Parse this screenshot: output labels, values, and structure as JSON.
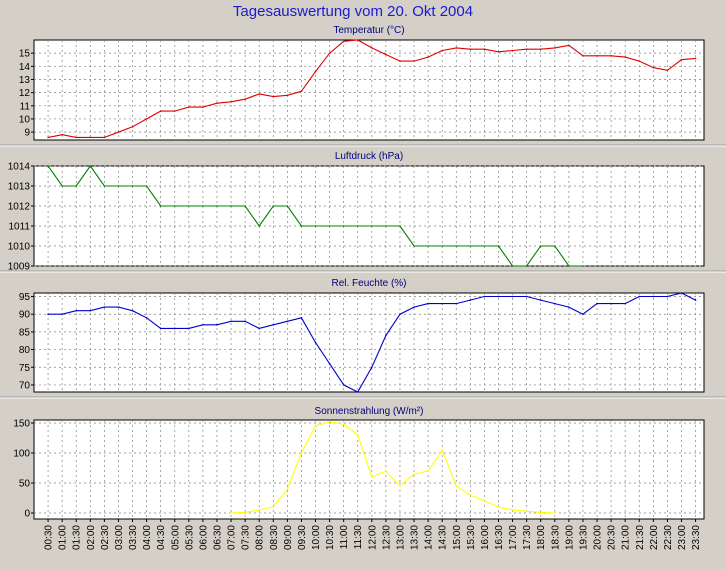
{
  "page_title": "Tagesauswertung vom 20. Okt 2004",
  "colors": {
    "background": "#d4d0c8",
    "plot_area": "#ffffff",
    "grid": "#808080",
    "title": "#1a1ad0",
    "panel_title": "#000080",
    "temperature": "#e00000",
    "pressure": "#008000",
    "humidity": "#0000d0",
    "radiation": "#ffff00"
  },
  "x_ticks": [
    "00:30",
    "01:00",
    "01:30",
    "02:00",
    "02:30",
    "03:00",
    "03:30",
    "04:00",
    "04:30",
    "05:00",
    "05:30",
    "06:00",
    "06:30",
    "07:00",
    "07:30",
    "08:00",
    "08:30",
    "09:00",
    "09:30",
    "10:00",
    "10:30",
    "11:00",
    "11:30",
    "12:00",
    "12:30",
    "13:00",
    "13:30",
    "14:00",
    "14:30",
    "15:00",
    "15:30",
    "16:00",
    "16:30",
    "17:00",
    "17:30",
    "18:00",
    "18:30",
    "19:00",
    "19:30",
    "20:00",
    "20:30",
    "21:00",
    "21:30",
    "22:00",
    "22:30",
    "23:00",
    "23:30"
  ],
  "chart_data": [
    {
      "type": "line",
      "title": "Temperatur (°C)",
      "color": "#e00000",
      "ylim": [
        8.4,
        16
      ],
      "yticks": [
        9,
        10,
        11,
        12,
        13,
        14,
        15
      ],
      "values": [
        8.6,
        8.8,
        8.6,
        8.6,
        8.6,
        9.0,
        9.4,
        10.0,
        10.6,
        10.6,
        10.9,
        10.9,
        11.2,
        11.3,
        11.5,
        11.9,
        11.7,
        11.8,
        12.1,
        13.6,
        15.0,
        15.9,
        16.0,
        15.4,
        14.9,
        14.4,
        14.4,
        14.7,
        15.2,
        15.4,
        15.3,
        15.3,
        15.1,
        15.2,
        15.3,
        15.3,
        15.4,
        15.6,
        14.8,
        14.8,
        14.8,
        14.7,
        14.4,
        13.9,
        13.7,
        14.5,
        14.6
      ]
    },
    {
      "type": "line",
      "title": "Luftdruck (hPa)",
      "color": "#008000",
      "ylim": [
        1009,
        1014
      ],
      "yticks": [
        1009,
        1010,
        1011,
        1012,
        1013,
        1014
      ],
      "values": [
        1014,
        1013,
        1013,
        1014,
        1013,
        1013,
        1013,
        1013,
        1012,
        1012,
        1012,
        1012,
        1012,
        1012,
        1012,
        1011,
        1012,
        1012,
        1011,
        1011,
        1011,
        1011,
        1011,
        1011,
        1011,
        1011,
        1010,
        1010,
        1010,
        1010,
        1010,
        1010,
        1010,
        1009,
        1009,
        1010,
        1010,
        1009,
        1009,
        null,
        null,
        null,
        null,
        null,
        null,
        null,
        null
      ]
    },
    {
      "type": "line",
      "title": "Rel. Feuchte (%)",
      "color": "#0000d0",
      "ylim": [
        68,
        96
      ],
      "yticks": [
        70,
        75,
        80,
        85,
        90,
        95
      ],
      "values": [
        90,
        90,
        91,
        91,
        92,
        92,
        91,
        89,
        86,
        86,
        86,
        87,
        87,
        88,
        88,
        86,
        87,
        88,
        89,
        82,
        76,
        70,
        68,
        75,
        84,
        90,
        92,
        93,
        93,
        93,
        94,
        95,
        95,
        95,
        95,
        94,
        93,
        92,
        90,
        93,
        93,
        93,
        95,
        95,
        95,
        96,
        94
      ]
    },
    {
      "type": "line",
      "title": "Sonnenstrahlung (W/m²)",
      "color": "#ffff00",
      "ylim": [
        -10,
        155
      ],
      "yticks": [
        0,
        50,
        100,
        150
      ],
      "values": [
        null,
        null,
        null,
        null,
        null,
        null,
        null,
        null,
        null,
        null,
        null,
        null,
        null,
        0,
        1,
        5,
        10,
        40,
        100,
        145,
        152,
        148,
        130,
        60,
        70,
        45,
        65,
        70,
        105,
        45,
        30,
        20,
        10,
        5,
        3,
        1,
        0,
        null,
        null,
        null,
        null,
        null,
        null,
        null,
        null,
        null,
        null
      ]
    }
  ]
}
